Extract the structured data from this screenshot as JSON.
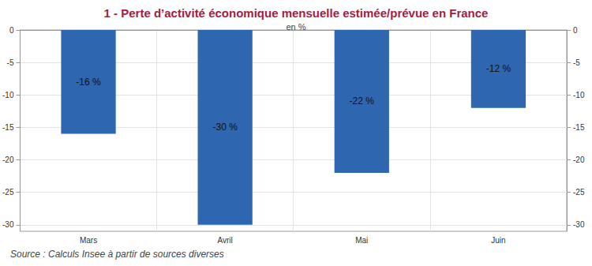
{
  "chart_data": {
    "type": "bar",
    "title": "1 - Perte d’activité économique mensuelle estimée/prévue en France",
    "subtitle": "en %",
    "source": "Source : Calculs Insee à partir de sources diverses",
    "categories": [
      "Mars",
      "Avril",
      "Mai",
      "Juin"
    ],
    "values": [
      -16,
      -30,
      -22,
      -12
    ],
    "value_labels": [
      "-16 %",
      "-30 %",
      "-22 %",
      "-12 %"
    ],
    "color": "#2e66b0",
    "ylim": [
      -31,
      0
    ],
    "yticks": [
      -30,
      -25,
      -20,
      -15,
      -10,
      -5,
      0
    ],
    "grid": true,
    "data_labels": true
  }
}
